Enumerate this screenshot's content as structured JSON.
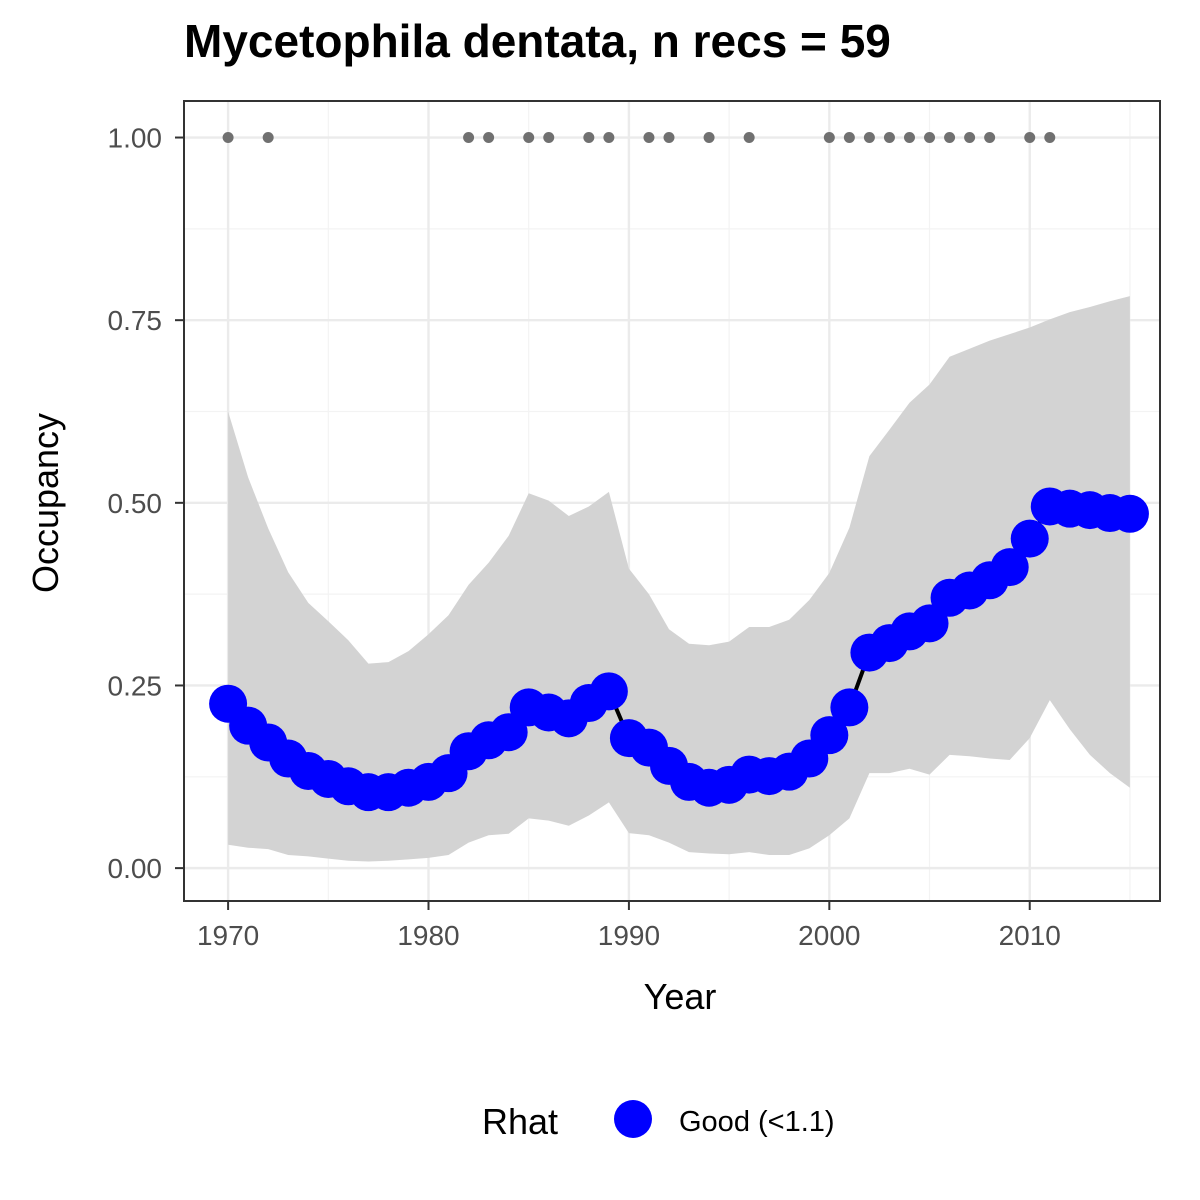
{
  "chart_data": {
    "type": "line",
    "title": "Mycetophila dentata, n recs = 59",
    "xlabel": "Year",
    "ylabel": "Occupancy",
    "xlim": [
      1967.8,
      2016.5
    ],
    "ylim": [
      -0.045,
      1.05
    ],
    "x_ticks": [
      1970,
      1980,
      1990,
      2000,
      2010
    ],
    "x_tick_labels": [
      "1970",
      "1980",
      "1990",
      "2000",
      "2010"
    ],
    "y_ticks": [
      0,
      0.25,
      0.5,
      0.75,
      1.0
    ],
    "y_tick_labels": [
      "0.00",
      "0.25",
      "0.50",
      "0.75",
      "1.00"
    ],
    "grid": true,
    "series": [
      {
        "x": [
          1970,
          1971,
          1972,
          1973,
          1974,
          1975,
          1976,
          1977,
          1978,
          1979,
          1980,
          1981,
          1982,
          1983,
          1984,
          1985,
          1986,
          1987,
          1988,
          1989,
          1990,
          1991,
          1992,
          1993,
          1994,
          1995,
          1996,
          1997,
          1998,
          1999,
          2000,
          2001,
          2002,
          2003,
          2004,
          2005,
          2006,
          2007,
          2008,
          2009,
          2010,
          2011,
          2012,
          2013,
          2014,
          2015
        ],
        "y": [
          0.225,
          0.195,
          0.172,
          0.15,
          0.133,
          0.122,
          0.112,
          0.104,
          0.104,
          0.11,
          0.118,
          0.13,
          0.16,
          0.175,
          0.186,
          0.22,
          0.213,
          0.205,
          0.226,
          0.242,
          0.178,
          0.165,
          0.14,
          0.118,
          0.11,
          0.114,
          0.128,
          0.126,
          0.132,
          0.15,
          0.182,
          0.22,
          0.295,
          0.308,
          0.324,
          0.335,
          0.37,
          0.38,
          0.394,
          0.412,
          0.451,
          0.495,
          0.492,
          0.49,
          0.486,
          0.485
        ],
        "lower": [
          0.032,
          0.028,
          0.026,
          0.018,
          0.016,
          0.013,
          0.01,
          0.009,
          0.01,
          0.012,
          0.014,
          0.018,
          0.035,
          0.045,
          0.047,
          0.068,
          0.065,
          0.058,
          0.072,
          0.09,
          0.048,
          0.045,
          0.035,
          0.022,
          0.02,
          0.019,
          0.022,
          0.018,
          0.018,
          0.027,
          0.045,
          0.068,
          0.13,
          0.13,
          0.136,
          0.128,
          0.155,
          0.153,
          0.15,
          0.148,
          0.178,
          0.23,
          0.19,
          0.155,
          0.13,
          0.11
        ],
        "upper": [
          0.625,
          0.535,
          0.465,
          0.405,
          0.363,
          0.338,
          0.312,
          0.28,
          0.282,
          0.297,
          0.32,
          0.346,
          0.388,
          0.418,
          0.455,
          0.513,
          0.503,
          0.482,
          0.495,
          0.515,
          0.41,
          0.375,
          0.327,
          0.307,
          0.305,
          0.31,
          0.33,
          0.33,
          0.34,
          0.367,
          0.404,
          0.466,
          0.564,
          0.6,
          0.637,
          0.662,
          0.7,
          0.711,
          0.722,
          0.731,
          0.74,
          0.751,
          0.761,
          0.768,
          0.776,
          0.783
        ]
      }
    ],
    "records": {
      "x": [
        1970,
        1972,
        1982,
        1983,
        1985,
        1986,
        1988,
        1989,
        1991,
        1992,
        1994,
        1996,
        2000,
        2001,
        2002,
        2003,
        2004,
        2005,
        2006,
        2007,
        2008,
        2010,
        2011
      ],
      "y": 1.0
    },
    "legend": {
      "title": "Rhat",
      "label": "Good (<1.1)",
      "position": "bottom"
    },
    "colors": {
      "point": "#0000ff",
      "line": "#000000",
      "ribbon": "#d3d3d3",
      "records": "#707070",
      "grid_major": "#ebebeb",
      "grid_minor": "#f3f3f3",
      "panel_border": "#333333",
      "tick_text": "#4d4d4d"
    }
  }
}
